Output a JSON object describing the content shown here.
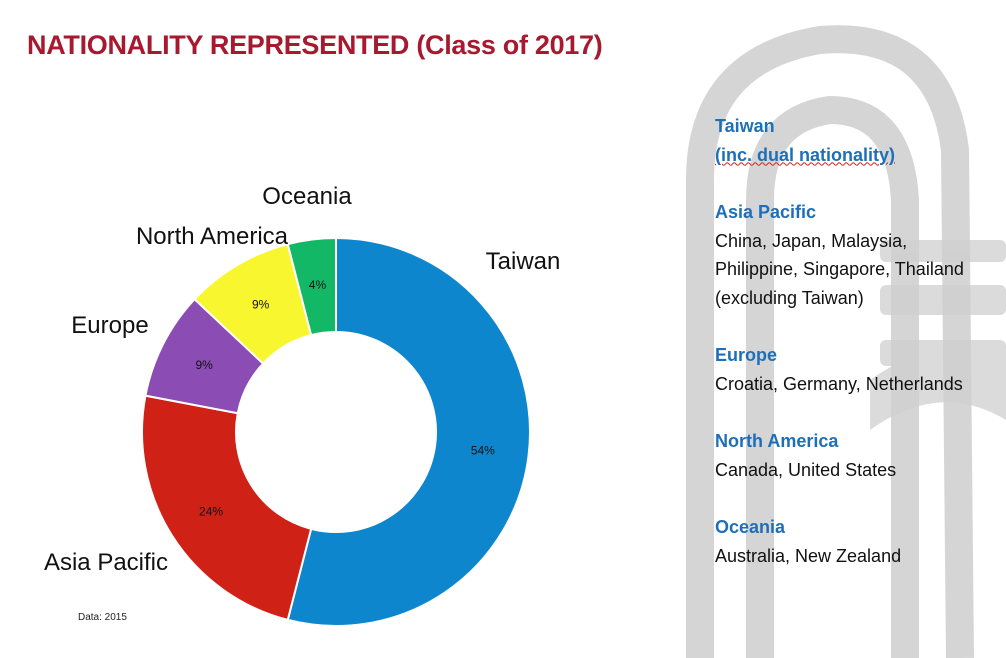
{
  "title": "NATIONALITY REPRESENTED (Class of 2017)",
  "note": "Data: 2015",
  "chart_data": {
    "type": "pie",
    "variant": "donut",
    "title": "NATIONALITY REPRESENTED (Class of 2017)",
    "categories": [
      "Taiwan",
      "Asia Pacific",
      "Europe",
      "North America",
      "Oceania"
    ],
    "values": [
      54,
      24,
      9,
      9,
      4
    ],
    "value_labels": [
      "54%",
      "24%",
      "9%",
      "9%",
      "4%"
    ],
    "colors": [
      "#0e86cd",
      "#cf2116",
      "#8b4cb3",
      "#f8f72f",
      "#12b866"
    ],
    "legend": "none"
  },
  "legend_notes": [
    {
      "heading": "Taiwan",
      "heading2": "(inc. dual nationality)",
      "body": ""
    },
    {
      "heading": "Asia Pacific",
      "body": "China, Japan, Malaysia,\nPhilippine, Singapore, Thailand\n(excluding Taiwan)"
    },
    {
      "heading": "Europe",
      "body": "Croatia, Germany, Netherlands"
    },
    {
      "heading": "North America",
      "body": "Canada, United States"
    },
    {
      "heading": "Oceania",
      "body": "Australia, New Zealand"
    }
  ]
}
